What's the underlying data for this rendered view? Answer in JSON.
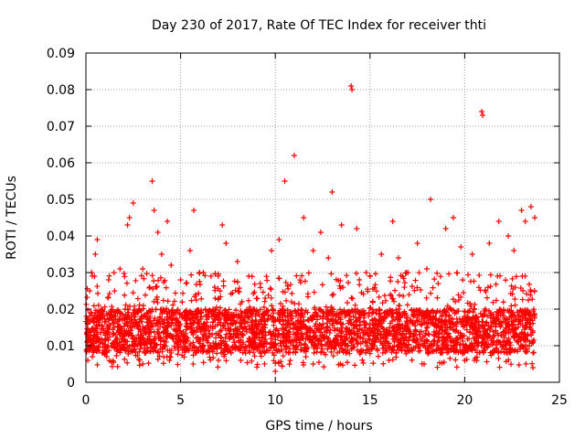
{
  "chart_data": {
    "type": "scatter",
    "title": "Day 230 of 2017, Rate Of TEC Index for receiver thti",
    "xlabel": "GPS time / hours",
    "ylabel": "ROTI / TECUs",
    "xlim": [
      0,
      25
    ],
    "ylim": [
      0,
      0.09
    ],
    "x_ticks": [
      "0",
      "5",
      "10",
      "15",
      "20",
      "25"
    ],
    "y_ticks": [
      "0",
      "0.01",
      "0.02",
      "0.03",
      "0.04",
      "0.05",
      "0.06",
      "0.07",
      "0.08",
      "0.09"
    ],
    "grid": true,
    "marker": "+",
    "color": "#ff0000",
    "series": [
      {
        "points": [
          [
            0.1,
            0.006
          ],
          [
            0.2,
            0.025
          ],
          [
            0.3,
            0.03
          ],
          [
            0.5,
            0.035
          ],
          [
            0.6,
            0.039
          ],
          [
            1.2,
            0.028
          ],
          [
            1.8,
            0.031
          ],
          [
            2.2,
            0.043
          ],
          [
            2.3,
            0.045
          ],
          [
            2.5,
            0.049
          ],
          [
            3.0,
            0.031
          ],
          [
            3.5,
            0.055
          ],
          [
            3.6,
            0.047
          ],
          [
            3.8,
            0.041
          ],
          [
            4.0,
            0.035
          ],
          [
            4.3,
            0.044
          ],
          [
            4.5,
            0.032
          ],
          [
            5.0,
            0.028
          ],
          [
            5.5,
            0.036
          ],
          [
            5.7,
            0.047
          ],
          [
            6.2,
            0.03
          ],
          [
            6.8,
            0.026
          ],
          [
            7.2,
            0.043
          ],
          [
            7.4,
            0.038
          ],
          [
            8.0,
            0.033
          ],
          [
            8.6,
            0.029
          ],
          [
            9.2,
            0.027
          ],
          [
            9.8,
            0.036
          ],
          [
            10.0,
            0.003
          ],
          [
            10.2,
            0.039
          ],
          [
            10.5,
            0.055
          ],
          [
            11.0,
            0.062
          ],
          [
            11.5,
            0.045
          ],
          [
            12.0,
            0.036
          ],
          [
            12.4,
            0.041
          ],
          [
            12.8,
            0.034
          ],
          [
            13.0,
            0.052
          ],
          [
            13.5,
            0.043
          ],
          [
            14.0,
            0.081
          ],
          [
            14.05,
            0.08
          ],
          [
            14.3,
            0.042
          ],
          [
            14.8,
            0.03
          ],
          [
            15.0,
            0.029
          ],
          [
            15.6,
            0.035
          ],
          [
            16.2,
            0.044
          ],
          [
            16.5,
            0.034
          ],
          [
            17.0,
            0.03
          ],
          [
            17.5,
            0.038
          ],
          [
            18.0,
            0.031
          ],
          [
            18.2,
            0.05
          ],
          [
            18.6,
            0.027
          ],
          [
            19.0,
            0.042
          ],
          [
            19.4,
            0.045
          ],
          [
            19.8,
            0.037
          ],
          [
            20.4,
            0.035
          ],
          [
            20.9,
            0.074
          ],
          [
            20.95,
            0.073
          ],
          [
            21.3,
            0.038
          ],
          [
            21.8,
            0.044
          ],
          [
            22.3,
            0.04
          ],
          [
            22.6,
            0.036
          ],
          [
            23.0,
            0.047
          ],
          [
            23.2,
            0.044
          ],
          [
            23.5,
            0.048
          ],
          [
            23.7,
            0.045
          ],
          [
            23.6,
            0.004
          ],
          [
            3.0,
            0.005
          ],
          [
            7.0,
            0.006
          ],
          [
            12.0,
            0.005
          ],
          [
            16.0,
            0.006
          ],
          [
            20.0,
            0.006
          ]
        ]
      }
    ],
    "band": {
      "x_range": [
        0,
        23.7
      ],
      "core_range": [
        0.008,
        0.02
      ],
      "spread_range": [
        0.004,
        0.03
      ]
    }
  }
}
